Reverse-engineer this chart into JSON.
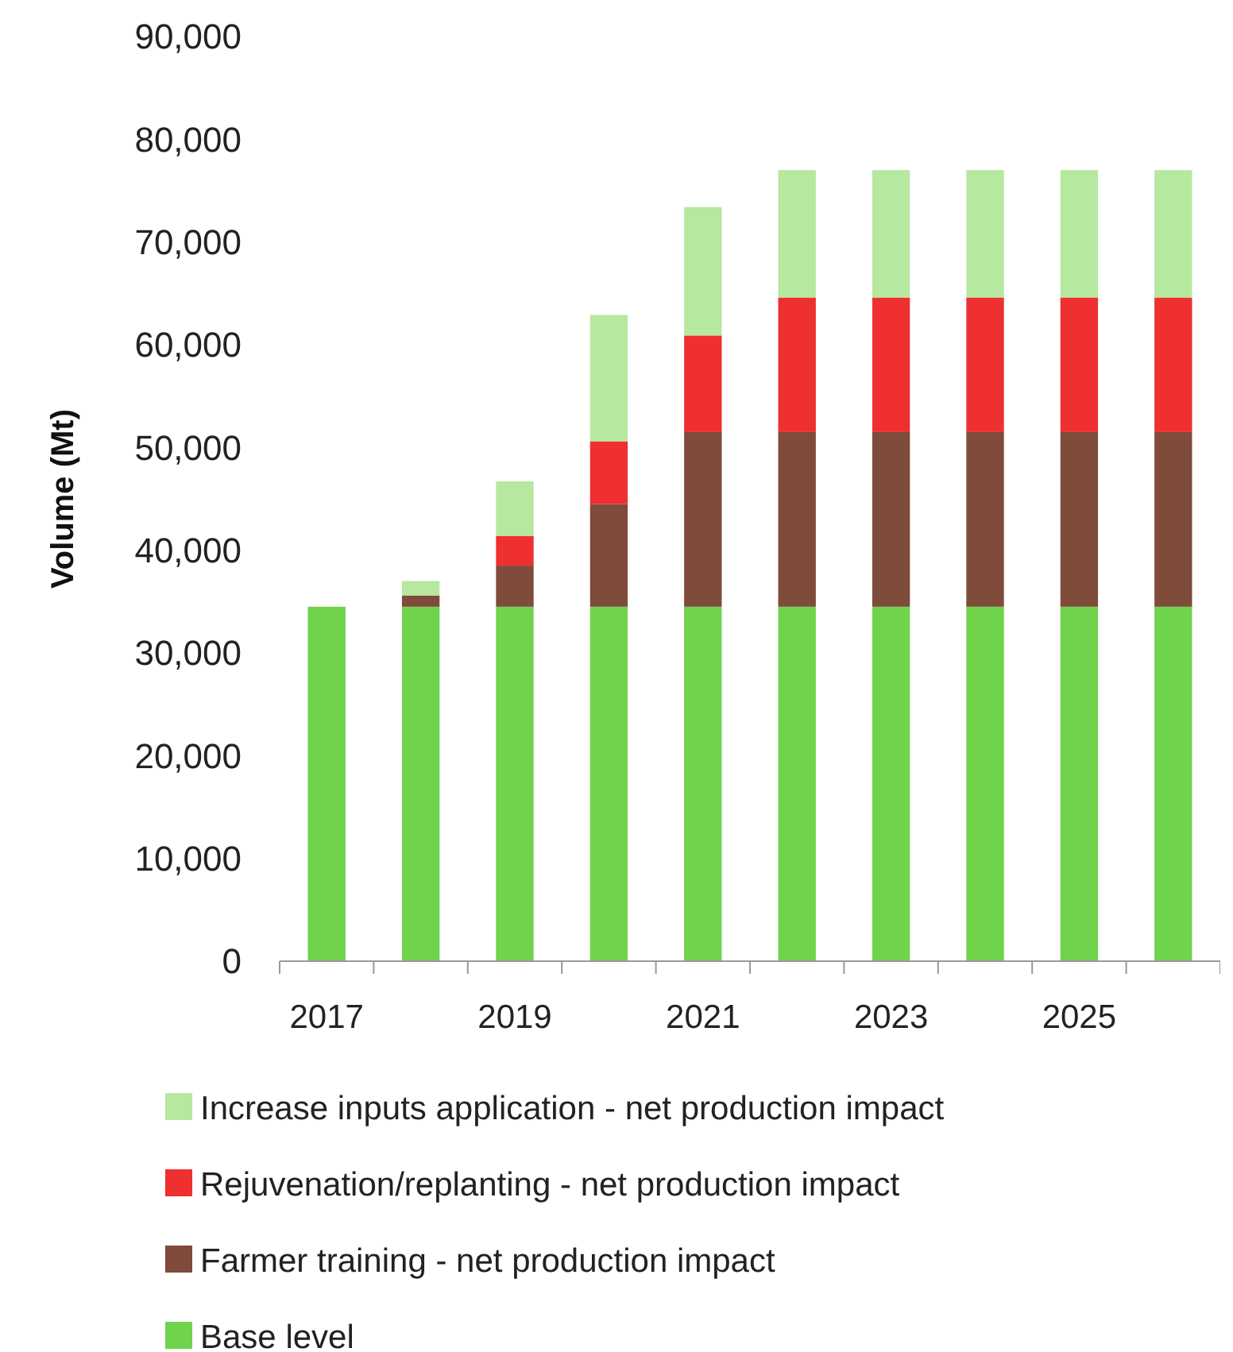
{
  "chart_data": {
    "type": "bar",
    "ylabel": "Volume (Mt)",
    "stacked": true,
    "categories": [
      "2017",
      null,
      "2019",
      null,
      "2021",
      null,
      "2023",
      null,
      "2025",
      null
    ],
    "series": [
      {
        "name": "Base level",
        "color": "#6fd34c",
        "values": [
          34500,
          34500,
          34500,
          34500,
          34500,
          34500,
          34500,
          34500,
          34500,
          34500
        ]
      },
      {
        "name": "Farmer training - net production impact",
        "color": "#7f4b3a",
        "values": [
          0,
          1100,
          4000,
          10000,
          17000,
          17000,
          17000,
          17000,
          17000,
          17000
        ]
      },
      {
        "name": "Rejuvenation/replanting - net production impact",
        "color": "#ee3030",
        "values": [
          0,
          0,
          2900,
          6100,
          9400,
          13100,
          13100,
          13100,
          13100,
          13100
        ]
      },
      {
        "name": "Increase inputs application - net production impact",
        "color": "#b6e8a0",
        "values": [
          0,
          1400,
          5300,
          12300,
          12500,
          12400,
          12400,
          12400,
          12400,
          12400
        ]
      }
    ],
    "ylim": [
      0,
      90000
    ],
    "yticks": [
      {
        "value": 0,
        "label": "0"
      },
      {
        "value": 10000,
        "label": "10,000"
      },
      {
        "value": 20000,
        "label": "20,000"
      },
      {
        "value": 30000,
        "label": "30,000"
      },
      {
        "value": 40000,
        "label": "40,000"
      },
      {
        "value": 50000,
        "label": "50,000"
      },
      {
        "value": 60000,
        "label": "60,000"
      },
      {
        "value": 70000,
        "label": "70,000"
      },
      {
        "value": 80000,
        "label": "80,000"
      },
      {
        "value": 90000,
        "label": "90,000"
      }
    ],
    "grid": false,
    "legend": "bottom"
  }
}
